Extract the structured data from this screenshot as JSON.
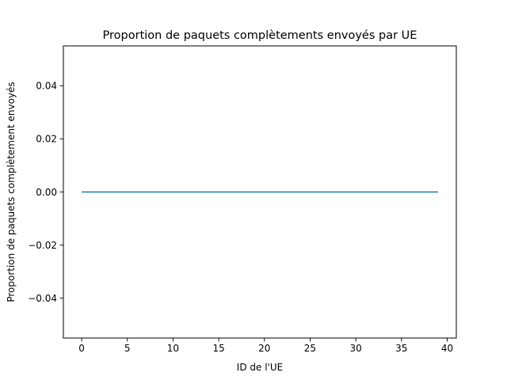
{
  "chart_data": {
    "type": "line",
    "title": "Proportion de paquets complètements envoyés par UE",
    "xlabel": "ID de l'UE",
    "ylabel": "Proportion de paquets complètement envoyés",
    "xlim": [
      -2,
      41
    ],
    "ylim": [
      -0.055,
      0.055
    ],
    "xticks": [
      0,
      5,
      10,
      15,
      20,
      25,
      30,
      35,
      40
    ],
    "xtick_labels": [
      "0",
      "5",
      "10",
      "15",
      "20",
      "25",
      "30",
      "35",
      "40"
    ],
    "yticks": [
      -0.04,
      -0.02,
      0.0,
      0.02,
      0.04
    ],
    "ytick_labels": [
      "−0.04",
      "−0.02",
      "0.00",
      "0.02",
      "0.04"
    ],
    "grid": false,
    "series": [
      {
        "color": "#1f77b4",
        "x": [
          0,
          1,
          2,
          3,
          4,
          5,
          6,
          7,
          8,
          9,
          10,
          11,
          12,
          13,
          14,
          15,
          16,
          17,
          18,
          19,
          20,
          21,
          22,
          23,
          24,
          25,
          26,
          27,
          28,
          29,
          30,
          31,
          32,
          33,
          34,
          35,
          36,
          37,
          38,
          39
        ],
        "y": [
          0,
          0,
          0,
          0,
          0,
          0,
          0,
          0,
          0,
          0,
          0,
          0,
          0,
          0,
          0,
          0,
          0,
          0,
          0,
          0,
          0,
          0,
          0,
          0,
          0,
          0,
          0,
          0,
          0,
          0,
          0,
          0,
          0,
          0,
          0,
          0,
          0,
          0,
          0,
          0
        ]
      }
    ]
  }
}
